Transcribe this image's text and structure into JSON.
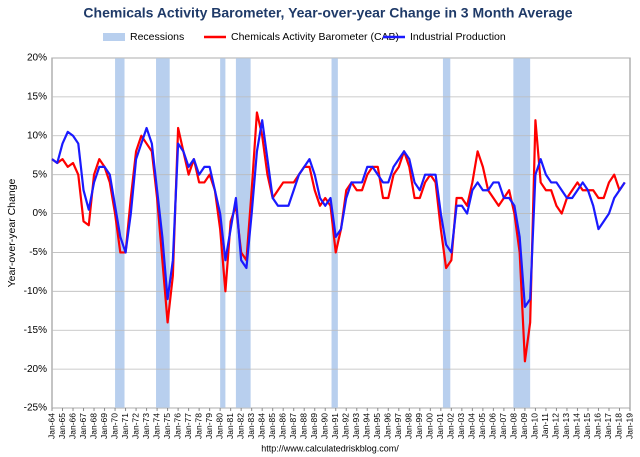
{
  "chart_data": {
    "type": "line",
    "title": "Chemicals Activity Barometer, Year-over-year Change in 3 Month Average",
    "y_label": "Year-over-year Change",
    "footer": "http://www.calculatedriskblog.com/",
    "grid": true,
    "legend_position": "top",
    "recession_name": "Recessions",
    "recession_color": "#b8cfee",
    "recessions": [
      [
        1970.0,
        1970.9
      ],
      [
        1973.9,
        1975.2
      ],
      [
        1980.0,
        1980.5
      ],
      [
        1981.5,
        1982.9
      ],
      [
        1990.6,
        1991.2
      ],
      [
        2001.2,
        2001.9
      ],
      [
        2007.9,
        2009.5
      ]
    ],
    "x": [
      1964.0,
      1964.5,
      1965.0,
      1965.5,
      1966.0,
      1966.5,
      1967.0,
      1967.5,
      1968.0,
      1968.5,
      1969.0,
      1969.5,
      1970.0,
      1970.5,
      1971.0,
      1971.5,
      1972.0,
      1972.5,
      1973.0,
      1973.5,
      1974.0,
      1974.5,
      1975.0,
      1975.5,
      1976.0,
      1976.5,
      1977.0,
      1977.5,
      1978.0,
      1978.5,
      1979.0,
      1979.5,
      1980.0,
      1980.5,
      1981.0,
      1981.5,
      1982.0,
      1982.5,
      1983.0,
      1983.5,
      1984.0,
      1984.5,
      1985.0,
      1985.5,
      1986.0,
      1986.5,
      1987.0,
      1987.5,
      1988.0,
      1988.5,
      1989.0,
      1989.5,
      1990.0,
      1990.5,
      1991.0,
      1991.5,
      1992.0,
      1992.5,
      1993.0,
      1993.5,
      1994.0,
      1994.5,
      1995.0,
      1995.5,
      1996.0,
      1996.5,
      1997.0,
      1997.5,
      1998.0,
      1998.5,
      1999.0,
      1999.5,
      2000.0,
      2000.5,
      2001.0,
      2001.5,
      2002.0,
      2002.5,
      2003.0,
      2003.5,
      2004.0,
      2004.5,
      2005.0,
      2005.5,
      2006.0,
      2006.5,
      2007.0,
      2007.5,
      2008.0,
      2008.5,
      2009.0,
      2009.5,
      2010.0,
      2010.5,
      2011.0,
      2011.5,
      2012.0,
      2012.5,
      2013.0,
      2013.5,
      2014.0,
      2014.5,
      2015.0,
      2015.5,
      2016.0,
      2016.5,
      2017.0,
      2017.5,
      2018.0,
      2018.5
    ],
    "series": [
      {
        "name": "Chemicals Activity Barometer (CAB)",
        "color": "#ff0000",
        "values": [
          7,
          6.5,
          7,
          6,
          6.5,
          5,
          -1,
          -1.5,
          5,
          7,
          6,
          4,
          0,
          -5,
          -5,
          2,
          8,
          10,
          9,
          8,
          2,
          -6,
          -14,
          -8,
          11,
          8,
          5,
          7,
          4,
          4,
          5,
          3,
          -2,
          -10,
          -1,
          1,
          -5,
          -6,
          3,
          13,
          10,
          5,
          2,
          3,
          4,
          4,
          4,
          5,
          6,
          6,
          3,
          1,
          2,
          1,
          -5,
          -2,
          3,
          4,
          3,
          3,
          5,
          6,
          6,
          2,
          2,
          5,
          6,
          8,
          6,
          2,
          2,
          4,
          5,
          4,
          -2,
          -7,
          -6,
          2,
          2,
          1,
          4,
          8,
          6,
          3,
          2,
          1,
          2,
          3,
          0,
          -5,
          -19,
          -14,
          12,
          4,
          3,
          3,
          1,
          0,
          2,
          3,
          4,
          3,
          3,
          3,
          2,
          2,
          4,
          5,
          3,
          4
        ]
      },
      {
        "name": "Industrial Production",
        "color": "#1a1aff",
        "values": [
          7,
          6.5,
          9,
          10.5,
          10,
          9,
          3,
          0.5,
          4,
          6,
          6,
          5,
          1,
          -3,
          -5,
          0,
          7,
          9,
          11,
          9,
          3,
          -3,
          -11,
          -6,
          9,
          8,
          6,
          7,
          5,
          6,
          6,
          3,
          0,
          -6,
          -2,
          2,
          -6,
          -7,
          0,
          8,
          12,
          7,
          2,
          1,
          1,
          1,
          3,
          5,
          6,
          7,
          5,
          2,
          1,
          2,
          -3,
          -2,
          2,
          4,
          4,
          4,
          6,
          6,
          5,
          4,
          4,
          6,
          7,
          8,
          7,
          4,
          3,
          5,
          5,
          5,
          0,
          -4,
          -5,
          1,
          1,
          0,
          3,
          4,
          3,
          3,
          4,
          4,
          2,
          2,
          1,
          -3,
          -12,
          -11,
          5,
          7,
          5,
          4,
          4,
          3,
          2,
          2,
          3,
          4,
          3,
          1,
          -2,
          -1,
          0,
          2,
          3,
          4
        ]
      }
    ],
    "xlim": [
      1964,
      2019
    ],
    "ylim": [
      -25,
      20
    ],
    "yticks": [
      {
        "value": -25,
        "label": "-25%"
      },
      {
        "value": -20,
        "label": "-20%"
      },
      {
        "value": -15,
        "label": "-15%"
      },
      {
        "value": -10,
        "label": "-10%"
      },
      {
        "value": -5,
        "label": "-5%"
      },
      {
        "value": 0,
        "label": "0%"
      },
      {
        "value": 5,
        "label": "5%"
      },
      {
        "value": 10,
        "label": "10%"
      },
      {
        "value": 15,
        "label": "15%"
      },
      {
        "value": 20,
        "label": "20%"
      }
    ],
    "xticks": [
      {
        "value": 1964,
        "label": "Jan-64"
      },
      {
        "value": 1965,
        "label": "Jan-65"
      },
      {
        "value": 1966,
        "label": "Jan-66"
      },
      {
        "value": 1967,
        "label": "Jan-67"
      },
      {
        "value": 1968,
        "label": "Jan-68"
      },
      {
        "value": 1969,
        "label": "Jan-69"
      },
      {
        "value": 1970,
        "label": "Jan-70"
      },
      {
        "value": 1971,
        "label": "Jan-71"
      },
      {
        "value": 1972,
        "label": "Jan-72"
      },
      {
        "value": 1973,
        "label": "Jan-73"
      },
      {
        "value": 1974,
        "label": "Jan-74"
      },
      {
        "value": 1975,
        "label": "Jan-75"
      },
      {
        "value": 1976,
        "label": "Jan-76"
      },
      {
        "value": 1977,
        "label": "Jan-77"
      },
      {
        "value": 1978,
        "label": "Jan-78"
      },
      {
        "value": 1979,
        "label": "Jan-79"
      },
      {
        "value": 1980,
        "label": "Jan-80"
      },
      {
        "value": 1981,
        "label": "Jan-81"
      },
      {
        "value": 1982,
        "label": "Jan-82"
      },
      {
        "value": 1983,
        "label": "Jan-83"
      },
      {
        "value": 1984,
        "label": "Jan-84"
      },
      {
        "value": 1985,
        "label": "Jan-85"
      },
      {
        "value": 1986,
        "label": "Jan-86"
      },
      {
        "value": 1987,
        "label": "Jan-87"
      },
      {
        "value": 1988,
        "label": "Jan-88"
      },
      {
        "value": 1989,
        "label": "Jan-89"
      },
      {
        "value": 1990,
        "label": "Jan-90"
      },
      {
        "value": 1991,
        "label": "Jan-91"
      },
      {
        "value": 1992,
        "label": "Jan-92"
      },
      {
        "value": 1993,
        "label": "Jan-93"
      },
      {
        "value": 1994,
        "label": "Jan-94"
      },
      {
        "value": 1995,
        "label": "Jan-95"
      },
      {
        "value": 1996,
        "label": "Jan-96"
      },
      {
        "value": 1997,
        "label": "Jan-97"
      },
      {
        "value": 1998,
        "label": "Jan-98"
      },
      {
        "value": 1999,
        "label": "Jan-99"
      },
      {
        "value": 2000,
        "label": "Jan-00"
      },
      {
        "value": 2001,
        "label": "Jan-01"
      },
      {
        "value": 2002,
        "label": "Jan-02"
      },
      {
        "value": 2003,
        "label": "Jan-03"
      },
      {
        "value": 2004,
        "label": "Jan-04"
      },
      {
        "value": 2005,
        "label": "Jan-05"
      },
      {
        "value": 2006,
        "label": "Jan-06"
      },
      {
        "value": 2007,
        "label": "Jan-07"
      },
      {
        "value": 2008,
        "label": "Jan-08"
      },
      {
        "value": 2009,
        "label": "Jan-09"
      },
      {
        "value": 2010,
        "label": "Jan-10"
      },
      {
        "value": 2011,
        "label": "Jan-11"
      },
      {
        "value": 2012,
        "label": "Jan-12"
      },
      {
        "value": 2013,
        "label": "Jan-13"
      },
      {
        "value": 2014,
        "label": "Jan-14"
      },
      {
        "value": 2015,
        "label": "Jan-15"
      },
      {
        "value": 2016,
        "label": "Jan-16"
      },
      {
        "value": 2017,
        "label": "Jan-17"
      },
      {
        "value": 2018,
        "label": "Jan-18"
      },
      {
        "value": 2019,
        "label": "Jan-19"
      }
    ]
  }
}
